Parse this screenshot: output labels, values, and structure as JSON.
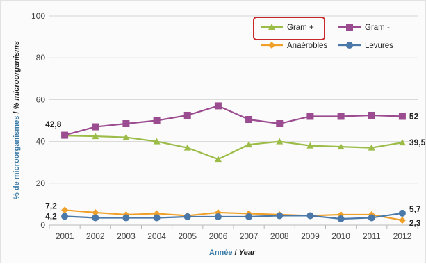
{
  "chart_data": {
    "type": "line",
    "categories": [
      "2001",
      "2002",
      "2003",
      "2004",
      "2005",
      "2006",
      "2007",
      "2008",
      "2009",
      "2010",
      "2011",
      "2012"
    ],
    "series": [
      {
        "name": "Gram +",
        "color": "#9cbc48",
        "marker": "triangle",
        "values": [
          42.8,
          42.5,
          42.0,
          40.0,
          37.0,
          31.5,
          38.5,
          40.0,
          38.0,
          37.5,
          37.0,
          39.5
        ]
      },
      {
        "name": "Gram -",
        "color": "#9b4b8f",
        "marker": "square",
        "values": [
          43.0,
          47.0,
          48.5,
          50.0,
          52.5,
          57.0,
          50.5,
          48.5,
          52.0,
          52.0,
          52.5,
          52.0
        ]
      },
      {
        "name": "Anaérobles",
        "color": "#f0a028",
        "marker": "diamond",
        "values": [
          7.2,
          6.0,
          5.0,
          5.5,
          4.5,
          6.0,
          5.5,
          5.0,
          4.5,
          5.0,
          5.0,
          2.3
        ]
      },
      {
        "name": "Levures",
        "color": "#4a78a8",
        "marker": "circle",
        "values": [
          4.2,
          3.5,
          3.5,
          3.5,
          4.0,
          4.0,
          4.0,
          4.5,
          4.5,
          3.0,
          3.5,
          5.7
        ]
      }
    ],
    "ylim": [
      0,
      100
    ],
    "yticks": [
      0,
      20,
      40,
      60,
      80,
      100
    ],
    "grid": "horizontal",
    "legend_position": "top-right",
    "legend_highlight": "Gram +",
    "xlabel": {
      "fr": "Année",
      "sep": " / ",
      "en": "Year"
    },
    "ylabel": {
      "fr": "% de microorganismes",
      "sep": " / ",
      "en": "% microorganisms"
    },
    "data_labels": [
      {
        "series": "Gram +",
        "index": 0,
        "text": "42,8"
      },
      {
        "series": "Gram +",
        "index": 11,
        "text": "39,5"
      },
      {
        "series": "Gram -",
        "index": 11,
        "text": "52"
      },
      {
        "series": "Anaérobles",
        "index": 0,
        "text": "7,2"
      },
      {
        "series": "Anaérobles",
        "index": 11,
        "text": "2,3"
      },
      {
        "series": "Levures",
        "index": 0,
        "text": "4,2"
      },
      {
        "series": "Levures",
        "index": 11,
        "text": "5,7"
      }
    ]
  }
}
